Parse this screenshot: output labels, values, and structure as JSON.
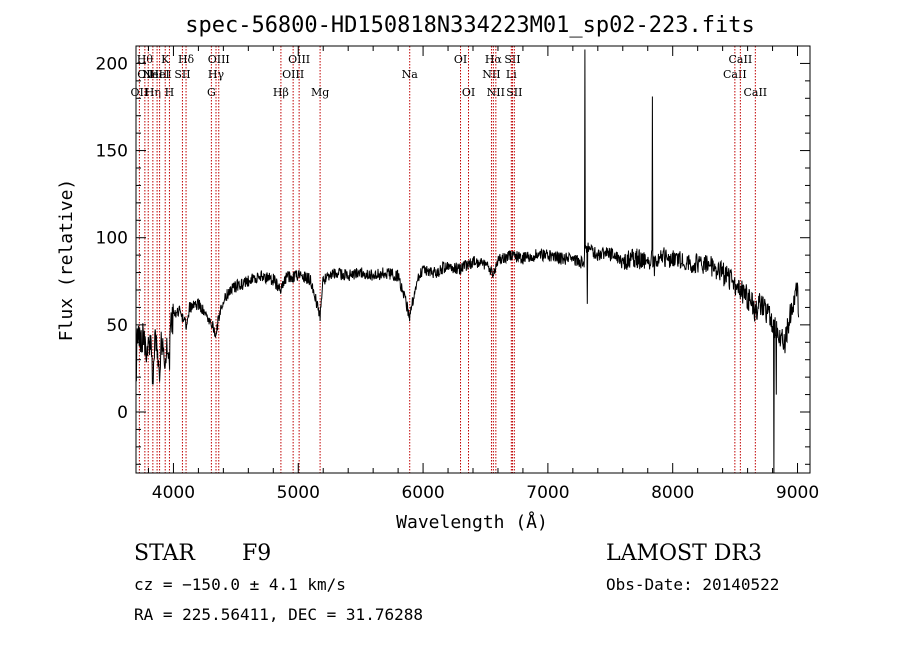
{
  "chart_data": {
    "type": "line",
    "title": "spec-56800-HD150818N334223M01_sp02-223.fits",
    "xlabel": "Wavelength (Å)",
    "ylabel": "Flux (relative)",
    "xlim": [
      3700,
      9100
    ],
    "ylim": [
      -35,
      210
    ],
    "xticks": [
      {
        "value": 4000,
        "label": "4000"
      },
      {
        "value": 5000,
        "label": "5000"
      },
      {
        "value": 6000,
        "label": "6000"
      },
      {
        "value": 7000,
        "label": "7000"
      },
      {
        "value": 8000,
        "label": "8000"
      },
      {
        "value": 9000,
        "label": "9000"
      }
    ],
    "yticks": [
      {
        "value": 0,
        "label": "0"
      },
      {
        "value": 50,
        "label": "50"
      },
      {
        "value": 100,
        "label": "100"
      },
      {
        "value": 150,
        "label": "150"
      },
      {
        "value": 200,
        "label": "200"
      }
    ],
    "line_color": "#000000",
    "marker_color": "#c00000",
    "spectrum_anchors": [
      [
        3700,
        20
      ],
      [
        3710,
        40
      ],
      [
        3720,
        50
      ],
      [
        3740,
        38
      ],
      [
        3760,
        45
      ],
      [
        3780,
        35
      ],
      [
        3800,
        42
      ],
      [
        3820,
        36
      ],
      [
        3835,
        20
      ],
      [
        3850,
        44
      ],
      [
        3870,
        38
      ],
      [
        3889,
        22
      ],
      [
        3900,
        40
      ],
      [
        3920,
        38
      ],
      [
        3934,
        20
      ],
      [
        3950,
        42
      ],
      [
        3968,
        28
      ],
      [
        3980,
        48
      ],
      [
        4000,
        55
      ],
      [
        4050,
        58
      ],
      [
        4101,
        50
      ],
      [
        4130,
        60
      ],
      [
        4200,
        62
      ],
      [
        4250,
        58
      ],
      [
        4300,
        52
      ],
      [
        4340,
        45
      ],
      [
        4380,
        60
      ],
      [
        4450,
        70
      ],
      [
        4500,
        72
      ],
      [
        4600,
        75
      ],
      [
        4700,
        78
      ],
      [
        4800,
        76
      ],
      [
        4861,
        70
      ],
      [
        4900,
        77
      ],
      [
        5000,
        78
      ],
      [
        5100,
        76
      ],
      [
        5175,
        55
      ],
      [
        5200,
        76
      ],
      [
        5300,
        80
      ],
      [
        5400,
        78
      ],
      [
        5500,
        80
      ],
      [
        5600,
        78
      ],
      [
        5700,
        80
      ],
      [
        5800,
        78
      ],
      [
        5893,
        55
      ],
      [
        5950,
        75
      ],
      [
        6000,
        82
      ],
      [
        6100,
        80
      ],
      [
        6200,
        84
      ],
      [
        6300,
        82
      ],
      [
        6400,
        86
      ],
      [
        6500,
        85
      ],
      [
        6563,
        78
      ],
      [
        6600,
        88
      ],
      [
        6700,
        90
      ],
      [
        6800,
        88
      ],
      [
        6900,
        90
      ],
      [
        7000,
        90
      ],
      [
        7100,
        88
      ],
      [
        7200,
        88
      ],
      [
        7290,
        85
      ],
      [
        7300,
        95
      ],
      [
        7400,
        90
      ],
      [
        7500,
        92
      ],
      [
        7600,
        86
      ],
      [
        7700,
        88
      ],
      [
        7800,
        86
      ],
      [
        7900,
        90
      ],
      [
        8000,
        88
      ],
      [
        8100,
        86
      ],
      [
        8200,
        85
      ],
      [
        8300,
        84
      ],
      [
        8400,
        80
      ],
      [
        8498,
        72
      ],
      [
        8542,
        70
      ],
      [
        8600,
        66
      ],
      [
        8662,
        58
      ],
      [
        8700,
        62
      ],
      [
        8750,
        58
      ],
      [
        8800,
        50
      ],
      [
        8850,
        46
      ],
      [
        8900,
        40
      ],
      [
        8950,
        60
      ],
      [
        9000,
        70
      ],
      [
        9010,
        50
      ]
    ],
    "spectrum_spikes": [
      {
        "x": 7297,
        "y": 208
      },
      {
        "x": 7315,
        "y": 62
      },
      {
        "x": 7837,
        "y": 181
      },
      {
        "x": 7855,
        "y": 78
      },
      {
        "x": 8810,
        "y": -35
      },
      {
        "x": 8830,
        "y": 10
      }
    ],
    "spectrum_seed": 56800,
    "lines": [
      {
        "x": 3727,
        "label": "OII",
        "row": 3
      },
      {
        "x": 3771,
        "label": "Hθ",
        "row": 1
      },
      {
        "x": 3798,
        "label": "OIII",
        "row": 2
      },
      {
        "x": 3835,
        "label": "Hη",
        "row": 3
      },
      {
        "x": 3869,
        "label": "NeIII",
        "row": 2
      },
      {
        "x": 3889,
        "label": "HeI",
        "row": 2
      },
      {
        "x": 3934,
        "label": "K",
        "row": 1
      },
      {
        "x": 3968,
        "label": "H",
        "row": 3
      },
      {
        "x": 4072,
        "label": "SII",
        "row": 2
      },
      {
        "x": 4101,
        "label": "Hδ",
        "row": 1
      },
      {
        "x": 4304,
        "label": "G",
        "row": 3
      },
      {
        "x": 4341,
        "label": "Hγ",
        "row": 2
      },
      {
        "x": 4363,
        "label": "OIII",
        "row": 1
      },
      {
        "x": 4861,
        "label": "Hβ",
        "row": 3
      },
      {
        "x": 4959,
        "label": "OIII",
        "row": 2
      },
      {
        "x": 5007,
        "label": "OIII",
        "row": 1
      },
      {
        "x": 5175,
        "label": "Mg",
        "row": 3
      },
      {
        "x": 5893,
        "label": "Na",
        "row": 2
      },
      {
        "x": 6300,
        "label": "OI",
        "row": 1
      },
      {
        "x": 6364,
        "label": "OI",
        "row": 3
      },
      {
        "x": 6548,
        "label": "NII",
        "row": 2
      },
      {
        "x": 6563,
        "label": "Hα",
        "row": 1
      },
      {
        "x": 6583,
        "label": "NII",
        "row": 3
      },
      {
        "x": 6707,
        "label": "Li",
        "row": 2
      },
      {
        "x": 6716,
        "label": "SII",
        "row": 1
      },
      {
        "x": 6731,
        "label": "SII",
        "row": 3
      },
      {
        "x": 8498,
        "label": "CaII",
        "row": 2
      },
      {
        "x": 8542,
        "label": "CaII",
        "row": 1
      },
      {
        "x": 8662,
        "label": "CaII",
        "row": 3
      }
    ]
  },
  "info": {
    "class": "STAR",
    "subclass": "F9",
    "survey": "LAMOST DR3",
    "cz": "cz = −150.0 ± 4.1 km/s",
    "obs_date": "Obs-Date: 20140522",
    "coords": "RA = 225.56411, DEC =  31.76288"
  }
}
